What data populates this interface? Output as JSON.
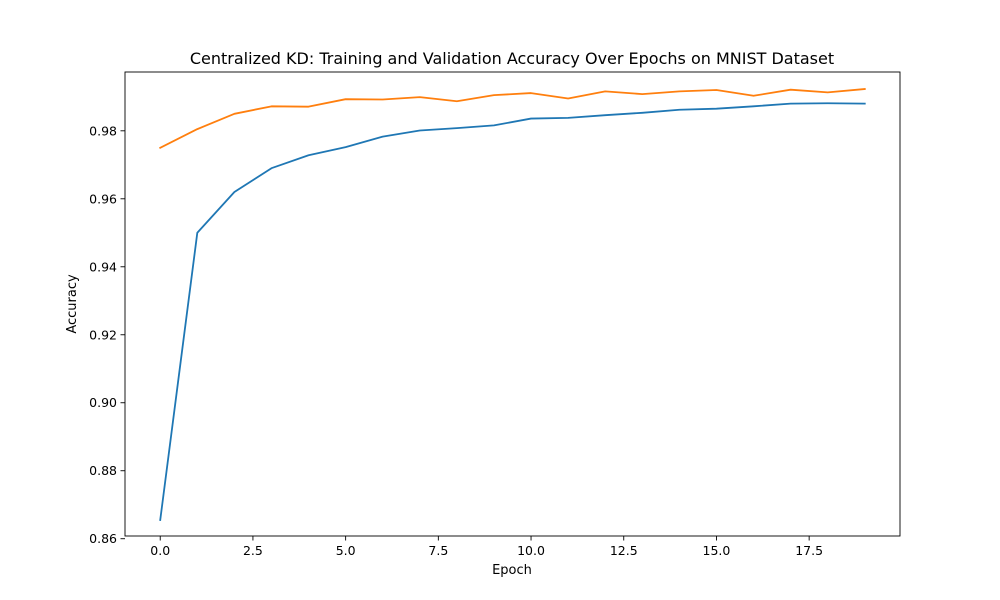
{
  "chart_data": {
    "type": "line",
    "title": "Centralized KD: Training and Validation Accuracy Over Epochs on MNIST Dataset",
    "xlabel": "Epoch",
    "ylabel": "Accuracy",
    "xlim": [
      -0.95,
      19.95
    ],
    "ylim": [
      0.8608,
      0.9973
    ],
    "x_ticks": [
      "0.0",
      "2.5",
      "5.0",
      "7.5",
      "10.0",
      "12.5",
      "15.0",
      "17.5"
    ],
    "x_tick_values": [
      0,
      2.5,
      5,
      7.5,
      10,
      12.5,
      15,
      17.5
    ],
    "y_ticks": [
      "0.86",
      "0.88",
      "0.90",
      "0.92",
      "0.94",
      "0.96",
      "0.98"
    ],
    "y_tick_values": [
      0.86,
      0.88,
      0.9,
      0.92,
      0.94,
      0.96,
      0.98
    ],
    "grid": false,
    "legend": "none",
    "x": [
      0,
      1,
      2,
      3,
      4,
      5,
      6,
      7,
      8,
      9,
      10,
      11,
      12,
      13,
      14,
      15,
      16,
      17,
      18,
      19
    ],
    "series": [
      {
        "color": "#1f77b4",
        "values": [
          0.8655,
          0.95,
          0.962,
          0.969,
          0.9728,
          0.9752,
          0.9783,
          0.9801,
          0.9808,
          0.9816,
          0.9836,
          0.9838,
          0.9846,
          0.9853,
          0.9862,
          0.9865,
          0.9872,
          0.988,
          0.9881,
          0.988
        ]
      },
      {
        "color": "#ff7f0e",
        "values": [
          0.975,
          0.9805,
          0.985,
          0.9872,
          0.9871,
          0.9893,
          0.9892,
          0.9899,
          0.9887,
          0.9905,
          0.9911,
          0.9895,
          0.9916,
          0.9908,
          0.9916,
          0.992,
          0.9903,
          0.9921,
          0.9913,
          0.9923
        ]
      }
    ]
  }
}
